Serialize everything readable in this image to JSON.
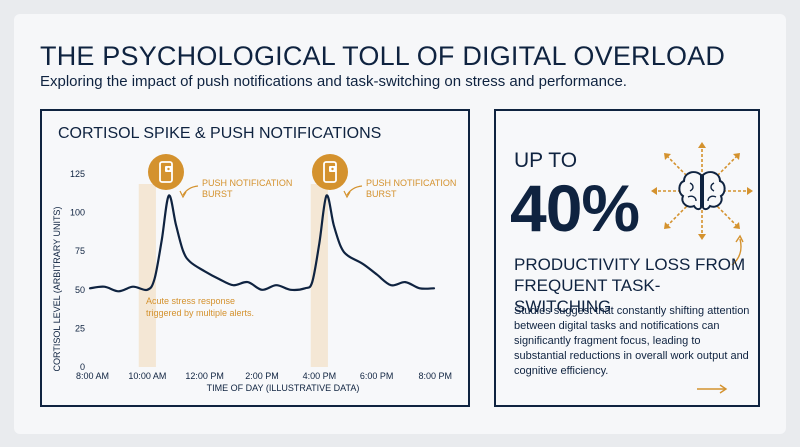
{
  "header": {
    "title": "THE PSYCHOLOGICAL TOLL OF DIGITAL OVERLOAD",
    "subtitle": "Exploring the impact of push notifications and task-switching on stress and performance."
  },
  "chart": {
    "heading": "CORTISOL SPIKE & PUSH NOTIFICATIONS",
    "ylabel": "CORTISOL LEVEL (ARBITRARY UNITS)",
    "xlabel": "TIME OF DAY (ILLUSTRATIVE DATA)",
    "annotation_1": [
      "PUSH NOTIFICATION",
      "BURST"
    ],
    "annotation_2": [
      "PUSH NOTIFICATION",
      "BURST"
    ],
    "stress_note": [
      "Acute stress response",
      "triggered by multiple alerts."
    ]
  },
  "stat": {
    "up_to": "UP TO",
    "value": "40%",
    "label": "PRODUCTIVITY LOSS FROM FREQUENT TASK-SWITCHING",
    "body": "Studies suggest that constantly shifting attention between digital tasks and notifications can significantly fragment focus, leading to substantial reductions in overall work output and cognitive efficiency."
  },
  "colors": {
    "navy": "#0f2340",
    "accent": "#d4922e",
    "highlight": "#f3e2c8"
  },
  "icons": [
    "phone-notification-icon",
    "brain-icon",
    "arrow-icon"
  ],
  "chart_data": {
    "type": "line",
    "title": "CORTISOL SPIKE & PUSH NOTIFICATIONS",
    "xlabel": "TIME OF DAY (ILLUSTRATIVE DATA)",
    "ylabel": "CORTISOL LEVEL (ARBITRARY UNITS)",
    "x_tick_labels": [
      "8:00 AM",
      "10:00 AM",
      "12:00 PM",
      "2:00 PM",
      "4:00 PM",
      "6:00 PM",
      "8:00 PM"
    ],
    "x_ticks": [
      8,
      10,
      12,
      14,
      16,
      18,
      20
    ],
    "xlim": [
      8,
      20
    ],
    "y_ticks": [
      0,
      25,
      50,
      75,
      100,
      125
    ],
    "ylim": [
      0,
      125
    ],
    "grid": false,
    "series": [
      {
        "x": [
          8,
          8.5,
          9,
          9.5,
          10,
          10.25,
          10.5,
          10.75,
          11,
          11.25,
          11.5,
          12,
          12.5,
          13,
          13.5,
          14,
          14.5,
          15,
          15.5,
          15.75,
          16,
          16.25,
          16.5,
          16.75,
          17,
          17.5,
          18,
          18.5,
          19,
          19.5,
          20
        ],
        "y": [
          51,
          52,
          49,
          52,
          50,
          57,
          82,
          111,
          92,
          75,
          68,
          62,
          57,
          53,
          55,
          50,
          53,
          50,
          51,
          55,
          80,
          111,
          92,
          78,
          72,
          67,
          60,
          53,
          55,
          51,
          51
        ]
      }
    ],
    "highlight_bands": [
      [
        9.7,
        10.3
      ],
      [
        15.7,
        16.3
      ]
    ]
  }
}
